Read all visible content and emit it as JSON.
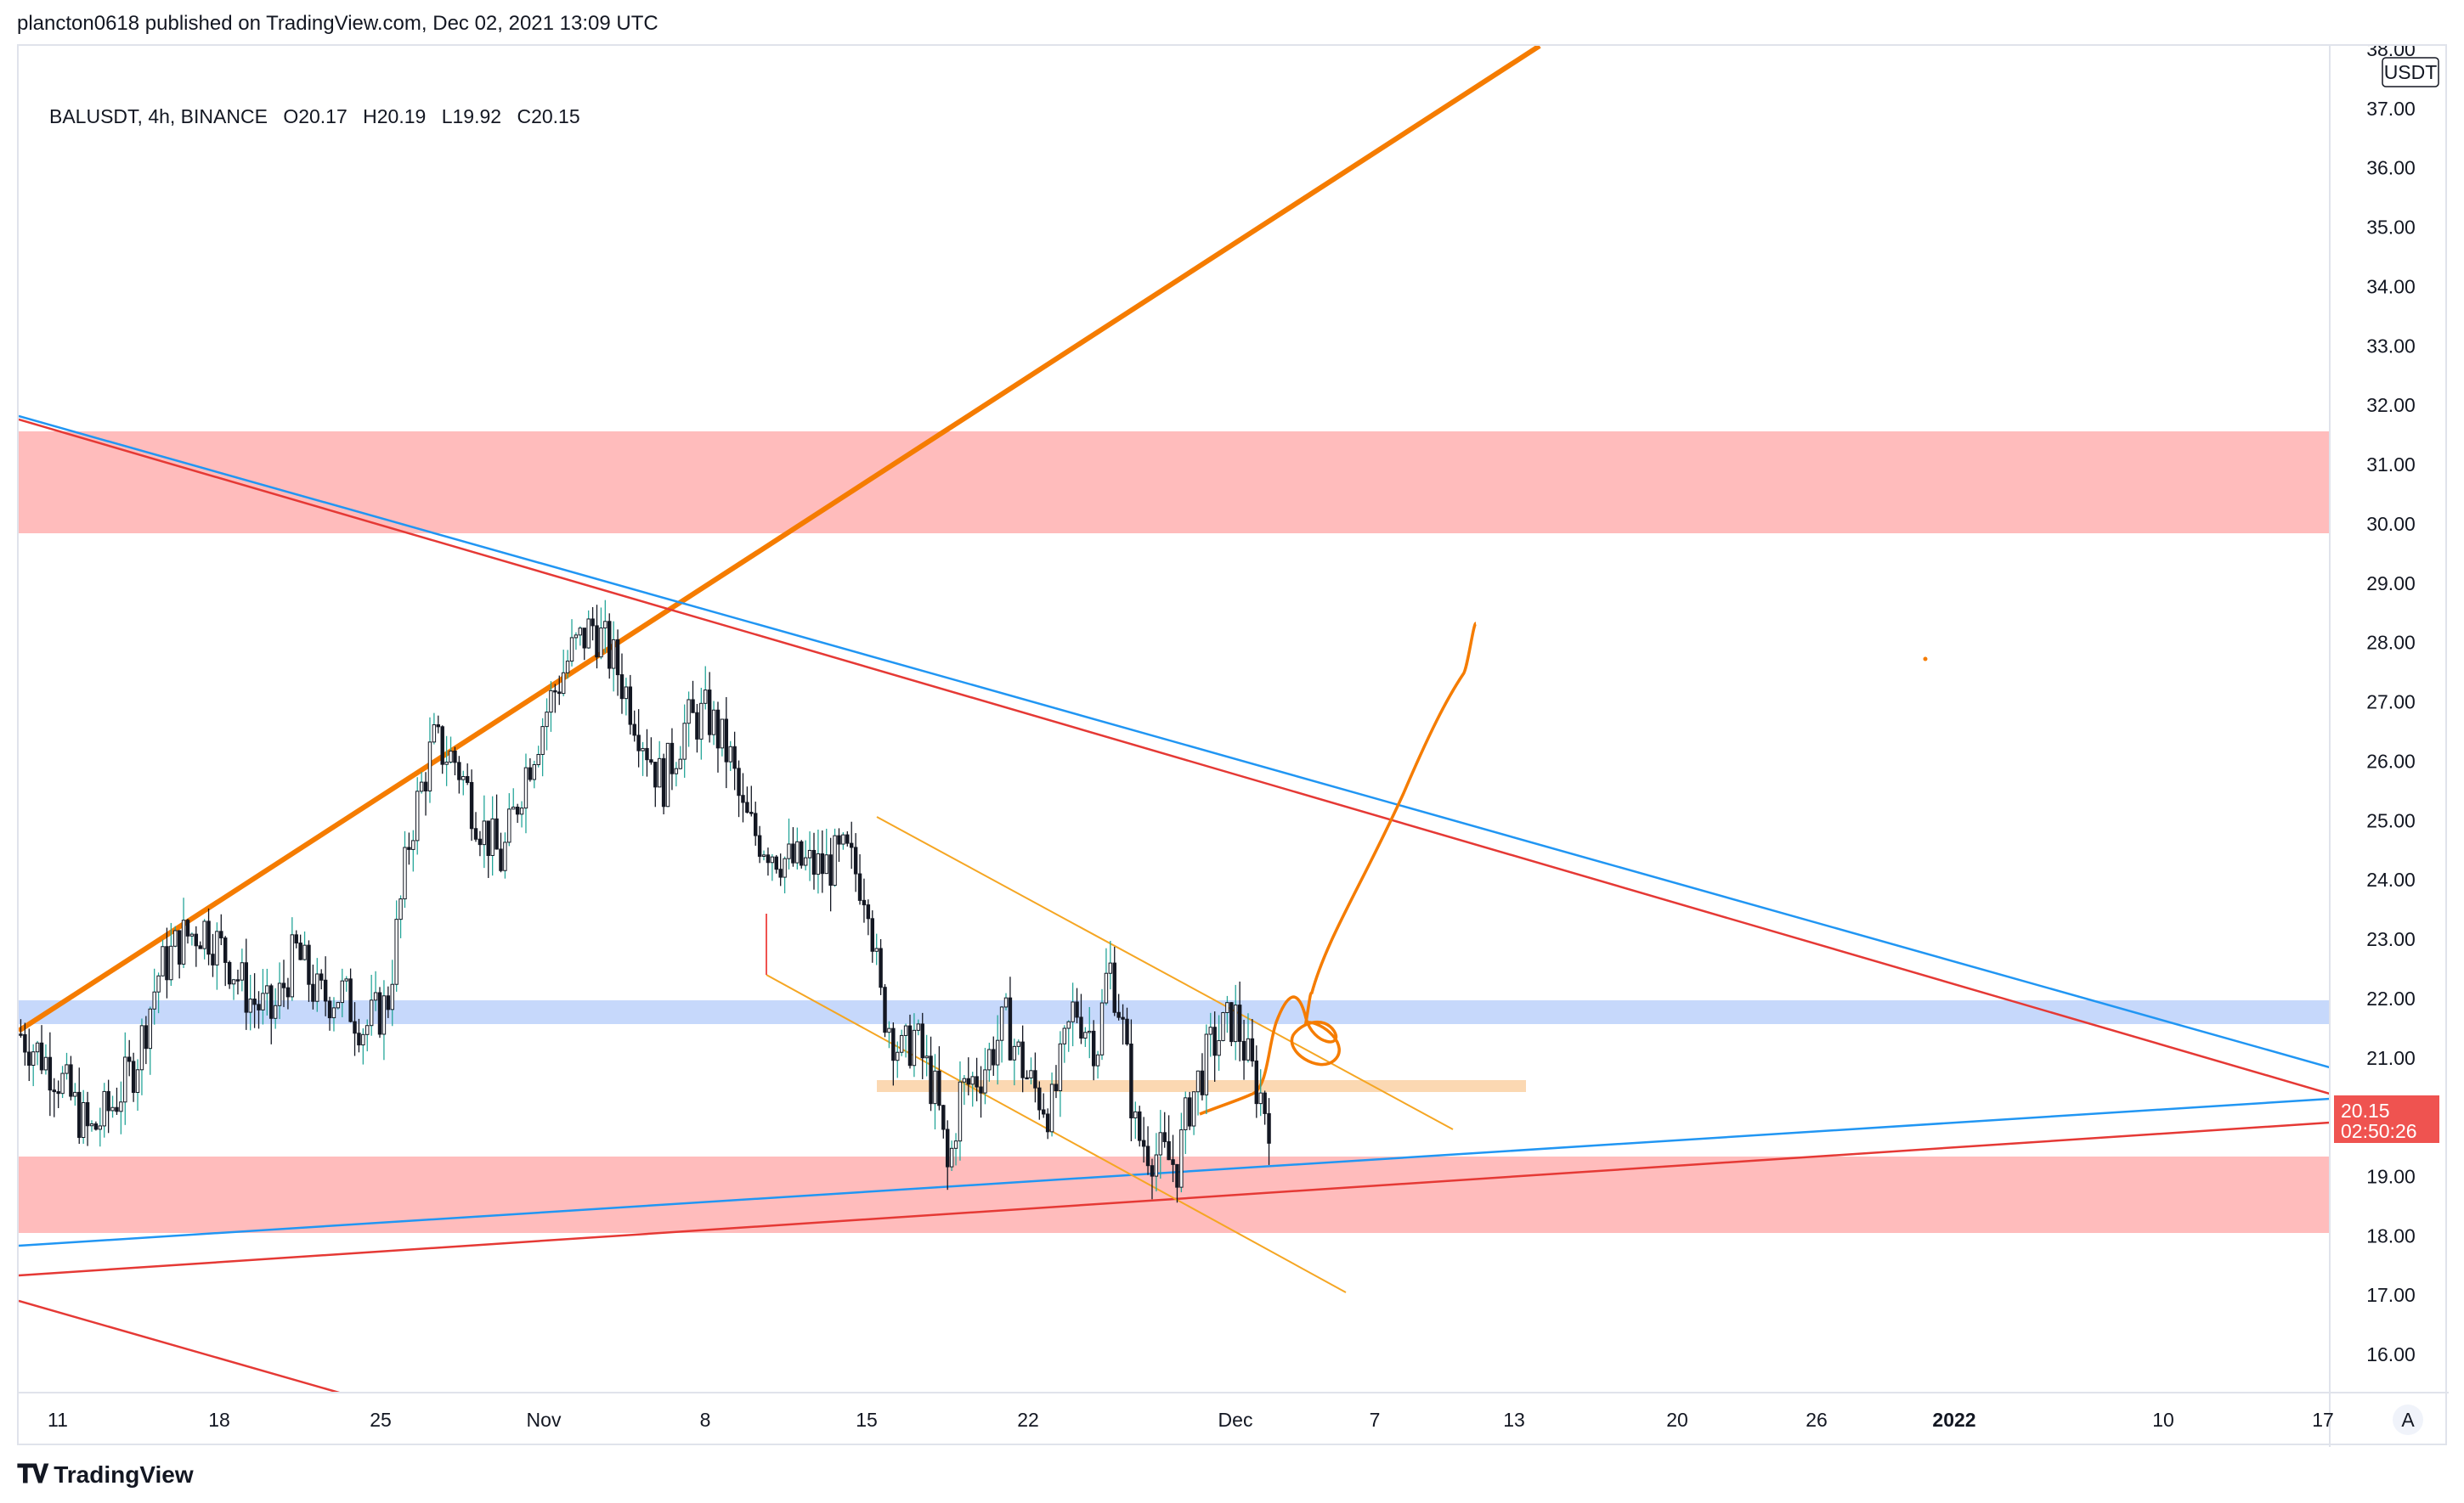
{
  "header": {
    "published": "plancton0618 published on TradingView.com, Dec 02, 2021 13:09 UTC"
  },
  "legend": {
    "symbol": "BALUSDT, 4h, BINANCE",
    "open": "O20.17",
    "high": "H20.19",
    "low": "L19.92",
    "close": "C20.15"
  },
  "price_scale": {
    "currency": "USDT",
    "last_price": "20.15",
    "countdown": "02:50:26",
    "auto_label": "A"
  },
  "footer": {
    "brand": "TradingView"
  },
  "colors": {
    "support_zone": "#ffbcbc",
    "demand_zone": "#c6d8fb",
    "pivot_zone": "#fbd8b2",
    "orange": "#f57c00",
    "red": "#e53935",
    "blue": "#2196f3",
    "last_price_bg": "#ef5350"
  },
  "chart_data": {
    "type": "candlestick",
    "ylim": [
      15.3,
      38.0
    ],
    "y_ticks": [
      "16.00",
      "17.00",
      "18.00",
      "19.00",
      "20.00",
      "21.00",
      "22.00",
      "23.00",
      "24.00",
      "25.00",
      "26.00",
      "27.00",
      "28.00",
      "29.00",
      "30.00",
      "31.00",
      "32.00",
      "33.00",
      "34.00",
      "35.00",
      "36.00",
      "37.00",
      "38.00"
    ],
    "x_ticks": [
      "11",
      "18",
      "25",
      "Nov",
      "8",
      "15",
      "22",
      "Dec",
      "7",
      "13",
      "20",
      "26",
      "2022",
      "10",
      "17"
    ],
    "zones": [
      {
        "y1": 29.85,
        "y2": 31.55
      },
      {
        "y1": 18.1,
        "y2": 19.35
      },
      {
        "y1": 21.6,
        "y2": 21.95
      },
      {
        "y1": 20.5,
        "y2": 20.65
      }
    ],
    "close_path": [
      [
        0,
        21.4
      ],
      [
        0.01,
        21.0
      ],
      [
        0.018,
        20.6
      ],
      [
        0.03,
        19.7
      ],
      [
        0.04,
        20.2
      ],
      [
        0.05,
        20.9
      ],
      [
        0.06,
        22.4
      ],
      [
        0.07,
        23.0
      ],
      [
        0.08,
        23.2
      ],
      [
        0.09,
        22.7
      ],
      [
        0.1,
        22.0
      ],
      [
        0.11,
        21.7
      ],
      [
        0.12,
        22.8
      ],
      [
        0.13,
        22.0
      ],
      [
        0.14,
        22.1
      ],
      [
        0.15,
        21.5
      ],
      [
        0.16,
        21.9
      ],
      [
        0.17,
        24.8
      ],
      [
        0.18,
        26.3
      ],
      [
        0.19,
        26.0
      ],
      [
        0.2,
        25.0
      ],
      [
        0.21,
        24.3
      ],
      [
        0.22,
        25.8
      ],
      [
        0.23,
        26.9
      ],
      [
        0.24,
        27.8
      ],
      [
        0.25,
        28.3
      ],
      [
        0.26,
        27.6
      ],
      [
        0.27,
        26.6
      ],
      [
        0.28,
        25.6
      ],
      [
        0.29,
        26.6
      ],
      [
        0.3,
        26.8
      ],
      [
        0.31,
        26.0
      ],
      [
        0.315,
        25.1
      ],
      [
        0.32,
        24.8
      ],
      [
        0.335,
        24.3
      ],
      [
        0.35,
        24.2
      ],
      [
        0.36,
        24.4
      ],
      [
        0.37,
        23.8
      ],
      [
        0.375,
        22.0
      ],
      [
        0.385,
        21.0
      ],
      [
        0.39,
        21.4
      ],
      [
        0.4,
        20.3
      ],
      [
        0.405,
        19.0
      ],
      [
        0.41,
        20.4
      ],
      [
        0.42,
        20.8
      ],
      [
        0.43,
        21.6
      ],
      [
        0.44,
        20.6
      ],
      [
        0.45,
        20.1
      ],
      [
        0.46,
        21.9
      ],
      [
        0.47,
        21.2
      ],
      [
        0.475,
        22.6
      ],
      [
        0.48,
        21.8
      ],
      [
        0.487,
        19.7
      ],
      [
        0.495,
        19.4
      ],
      [
        0.505,
        19.2
      ],
      [
        0.51,
        20.2
      ],
      [
        0.52,
        21.2
      ],
      [
        0.53,
        21.7
      ],
      [
        0.537,
        20.8
      ],
      [
        0.545,
        20.0
      ]
    ],
    "max_price": 29.1,
    "min_price": 18.55
  }
}
